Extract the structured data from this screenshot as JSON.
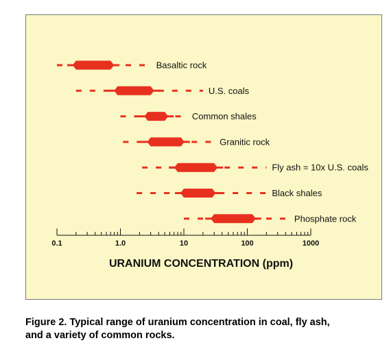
{
  "chart_data": {
    "type": "range",
    "x_scale": "log",
    "xlim": [
      0.1,
      1000
    ],
    "xlabel": "URANIUM CONCENTRATION (ppm)",
    "x_ticks": [
      0.1,
      1.0,
      10,
      100,
      1000
    ],
    "x_tick_labels": [
      "0.1",
      "1.0",
      "10",
      "100",
      "1000"
    ],
    "series": [
      {
        "label": "Basaltic rock",
        "min": 0.1,
        "typical_low": 0.2,
        "typical_high": 0.7,
        "max": 3
      },
      {
        "label": "U.S. coals",
        "min": 0.2,
        "typical_low": 0.9,
        "typical_high": 3,
        "max": 20
      },
      {
        "label": "Common shales",
        "min": 1.0,
        "typical_low": 2.7,
        "typical_high": 5,
        "max": 11
      },
      {
        "label": "Granitic rock",
        "min": 1.1,
        "typical_low": 3,
        "typical_high": 9,
        "max": 30
      },
      {
        "label": "Fly ash = 10x U.S. coals",
        "min": 2.2,
        "typical_low": 8,
        "typical_high": 30,
        "max": 200
      },
      {
        "label": "Black shales",
        "min": 1.8,
        "typical_low": 10,
        "typical_high": 28,
        "max": 200
      },
      {
        "label": "Phosphate rock",
        "min": 10,
        "typical_low": 30,
        "typical_high": 120,
        "max": 450
      }
    ],
    "colors": {
      "range": "#e8301f",
      "panel": "#fbf7c6",
      "border": "#7a7a7a"
    }
  },
  "caption": {
    "line1": "Figure 2.  Typical range of uranium concentration in coal, fly ash,",
    "line2": "and a variety of common rocks."
  }
}
